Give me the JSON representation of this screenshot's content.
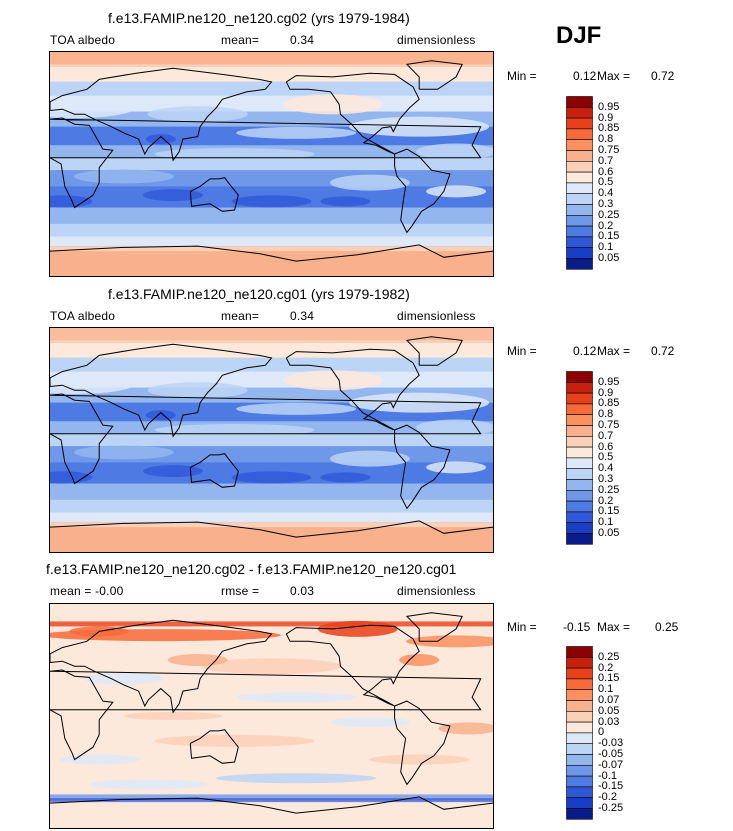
{
  "season": "DJF",
  "panels": [
    {
      "title": "f.e13.FAMIP.ne120_ne120.cg02 (yrs 1979-1984)",
      "left": "TOA albedo",
      "mid_label": "mean=",
      "mid_value": "0.34",
      "right": "dimensionless",
      "min_label": "Min =",
      "min_value": "0.12",
      "max_label": "Max =",
      "max_value": "0.72",
      "levels": [
        "0.95",
        "0.9",
        "0.85",
        "0.8",
        "0.75",
        "0.7",
        "0.6",
        "0.5",
        "0.4",
        "0.3",
        "0.25",
        "0.2",
        "0.15",
        "0.1",
        "0.05"
      ],
      "colors": [
        "#8b0000",
        "#c8200e",
        "#e8401a",
        "#f76a3a",
        "#fb9060",
        "#f9b08c",
        "#fbd0b8",
        "#fde8dc",
        "#dde9f8",
        "#bcd4f5",
        "#94b6ef",
        "#6f98e9",
        "#4e7be3",
        "#2f58d8",
        "#173ec6",
        "#0a1c8c"
      ]
    },
    {
      "title": "f.e13.FAMIP.ne120_ne120.cg01 (yrs 1979-1982)",
      "left": "TOA albedo",
      "mid_label": "mean=",
      "mid_value": "0.34",
      "right": "dimensionless",
      "min_label": "Min =",
      "min_value": "0.12",
      "max_label": "Max =",
      "max_value": "0.72",
      "levels": [
        "0.95",
        "0.9",
        "0.85",
        "0.8",
        "0.75",
        "0.7",
        "0.6",
        "0.5",
        "0.4",
        "0.3",
        "0.25",
        "0.2",
        "0.15",
        "0.1",
        "0.05"
      ],
      "colors": [
        "#8b0000",
        "#c8200e",
        "#e8401a",
        "#f76a3a",
        "#fb9060",
        "#f9b08c",
        "#fbd0b8",
        "#fde8dc",
        "#dde9f8",
        "#bcd4f5",
        "#94b6ef",
        "#6f98e9",
        "#4e7be3",
        "#2f58d8",
        "#173ec6",
        "#0a1c8c"
      ]
    },
    {
      "title": "f.e13.FAMIP.ne120_ne120.cg02 - f.e13.FAMIP.ne120_ne120.cg01",
      "left": "mean =  -0.00",
      "mid_label": "rmse =",
      "mid_value": "0.03",
      "right": "dimensionless",
      "min_label": "Min =",
      "min_value": "-0.15",
      "max_label": "Max =",
      "max_value": "0.25",
      "levels": [
        "0.25",
        "0.2",
        "0.15",
        "0.1",
        "0.07",
        "0.05",
        "0.03",
        "0",
        "-0.03",
        "-0.05",
        "-0.07",
        "-0.1",
        "-0.15",
        "-0.2",
        "-0.25"
      ],
      "colors": [
        "#8b0000",
        "#c8200e",
        "#e8401a",
        "#f76a3a",
        "#fb9060",
        "#f9b08c",
        "#fbd0b8",
        "#fde8dc",
        "#dde9f8",
        "#bcd4f5",
        "#94b6ef",
        "#6f98e9",
        "#4e7be3",
        "#2f58d8",
        "#173ec6",
        "#0a1c8c"
      ]
    }
  ],
  "chart_data": [
    {
      "type": "heatmap",
      "title": "f.e13.FAMIP.ne120_ne120.cg02 (yrs 1979-1984)",
      "variable": "TOA albedo",
      "units": "dimensionless",
      "mean": 0.34,
      "min": 0.12,
      "max": 0.72,
      "levels": [
        0.05,
        0.1,
        0.15,
        0.2,
        0.25,
        0.3,
        0.4,
        0.5,
        0.6,
        0.7,
        0.75,
        0.8,
        0.85,
        0.9,
        0.95
      ]
    },
    {
      "type": "heatmap",
      "title": "f.e13.FAMIP.ne120_ne120.cg01 (yrs 1979-1982)",
      "variable": "TOA albedo",
      "units": "dimensionless",
      "mean": 0.34,
      "min": 0.12,
      "max": 0.72,
      "levels": [
        0.05,
        0.1,
        0.15,
        0.2,
        0.25,
        0.3,
        0.4,
        0.5,
        0.6,
        0.7,
        0.75,
        0.8,
        0.85,
        0.9,
        0.95
      ]
    },
    {
      "type": "heatmap",
      "title": "f.e13.FAMIP.ne120_ne120.cg02 - f.e13.FAMIP.ne120_ne120.cg01",
      "units": "dimensionless",
      "mean": -0.0,
      "rmse": 0.03,
      "min": -0.15,
      "max": 0.25,
      "levels": [
        -0.25,
        -0.2,
        -0.15,
        -0.1,
        -0.07,
        -0.05,
        -0.03,
        0,
        0.03,
        0.05,
        0.07,
        0.1,
        0.15,
        0.2,
        0.25
      ]
    }
  ]
}
